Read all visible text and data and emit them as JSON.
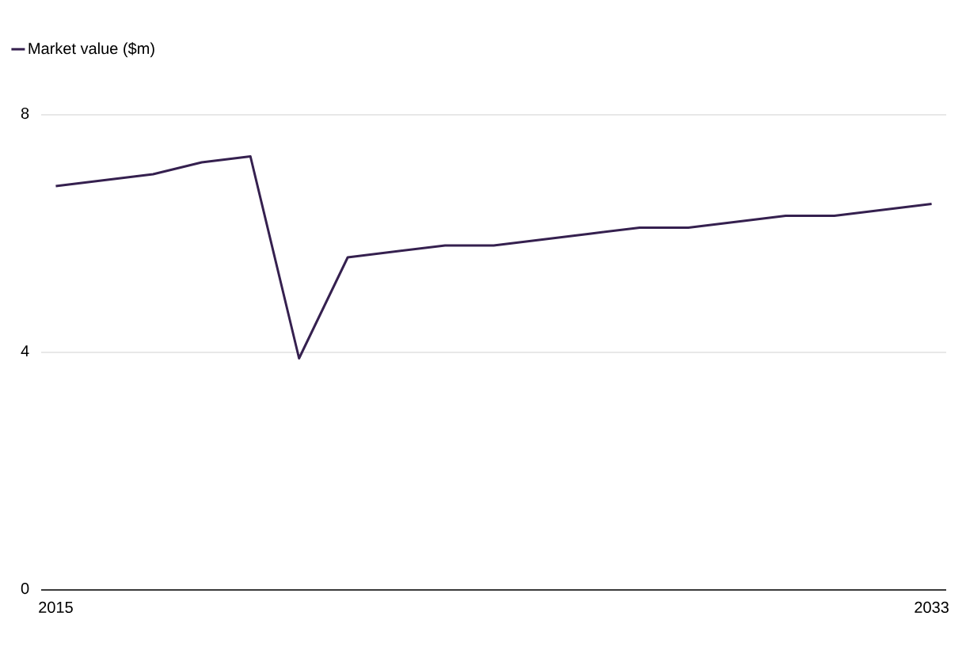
{
  "chart_data": {
    "type": "line",
    "x": [
      2015,
      2016,
      2017,
      2018,
      2019,
      2020,
      2021,
      2022,
      2023,
      2024,
      2025,
      2026,
      2027,
      2028,
      2029,
      2030,
      2031,
      2032,
      2033
    ],
    "series": [
      {
        "name": "Market value ($m)",
        "color": "#35204f",
        "values": [
          6.8,
          6.9,
          7.0,
          7.2,
          7.3,
          3.9,
          5.6,
          5.7,
          5.8,
          5.8,
          5.9,
          6.0,
          6.1,
          6.1,
          6.2,
          6.3,
          6.3,
          6.4,
          6.5
        ]
      }
    ],
    "xlim": [
      2014.7,
      2033.3
    ],
    "xticks": [
      2015,
      2033
    ],
    "ylim": [
      0,
      8
    ],
    "yticks": [
      0,
      4,
      8
    ],
    "grid": "y",
    "legend": "top left",
    "marker": "none",
    "line_style": "solid"
  }
}
